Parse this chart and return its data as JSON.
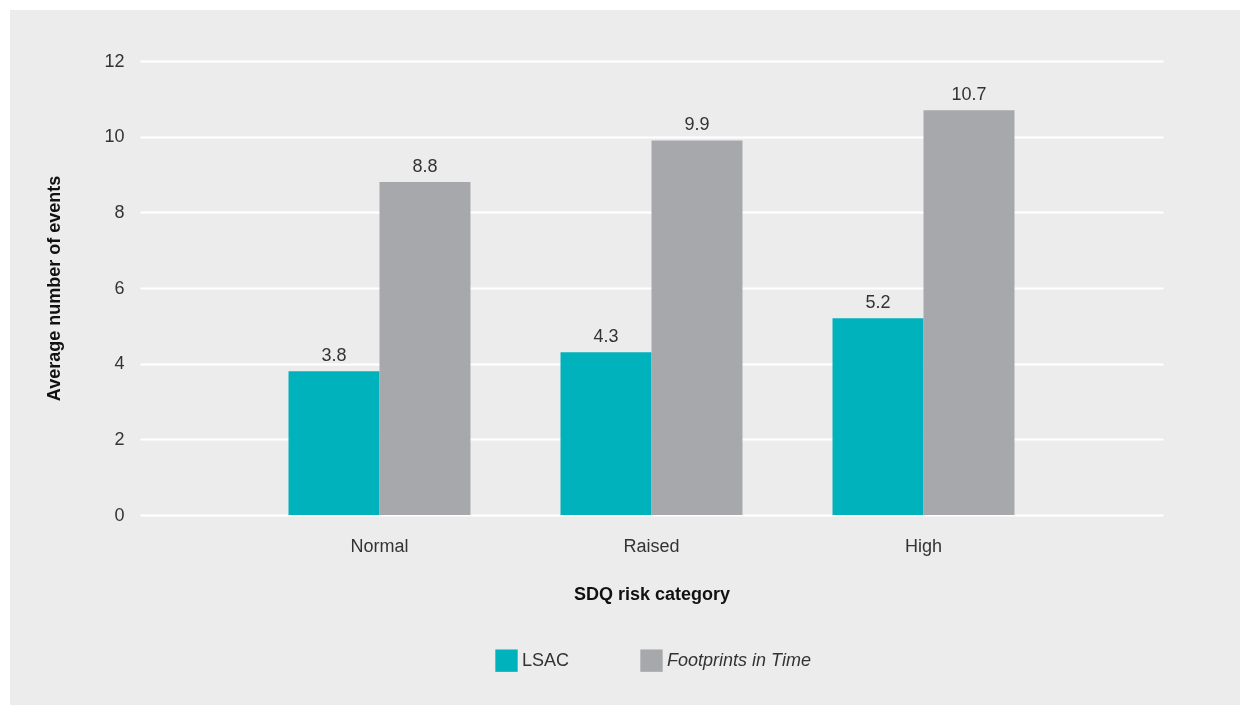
{
  "chart_data": {
    "type": "bar",
    "xlabel": "SDQ risk category",
    "ylabel": "Average number of events",
    "categories": [
      "Normal",
      "Raised",
      "High"
    ],
    "series": [
      {
        "name": "LSAC",
        "color": "#00b2bb",
        "values": [
          3.8,
          4.3,
          5.2
        ]
      },
      {
        "name": "Footprints in Time",
        "color": "#a7a8ab",
        "values": [
          8.8,
          9.9,
          10.7
        ]
      }
    ],
    "ylim": [
      0,
      12
    ],
    "yticks": [
      0,
      2,
      4,
      6,
      8,
      10,
      12
    ],
    "grid": "y",
    "legend": "bottom",
    "data_labels": true
  }
}
